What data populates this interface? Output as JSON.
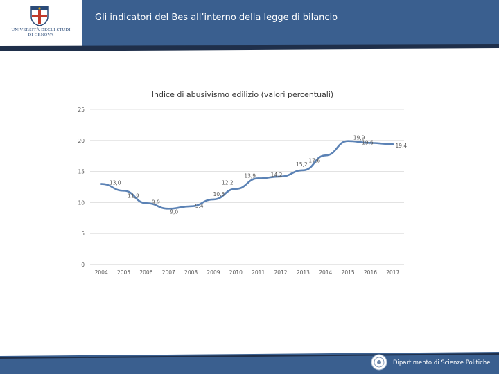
{
  "header": {
    "title": "Gli indicatori del Bes all’interno della legge di bilancio",
    "university_line1": "UNIVERSITÀ DEGLI STUDI",
    "university_line2": "DI GENOVA"
  },
  "footer": {
    "department": "Dipartimento di Scienze Politiche"
  },
  "colors": {
    "header_bg": "#3a5f8f",
    "stripe_dark": "#1f2f4a",
    "line": "#5b82b5",
    "grid": "#d9d9d9",
    "text": "#595959"
  },
  "chart_data": {
    "type": "line",
    "title": "Indice di abusivismo edilizio (valori percentuali)",
    "xlabel": "",
    "ylabel": "",
    "categories": [
      "2004",
      "2005",
      "2006",
      "2007",
      "2008",
      "2009",
      "2010",
      "2011",
      "2012",
      "2013",
      "2014",
      "2015",
      "2016",
      "2017"
    ],
    "values": [
      13.0,
      11.9,
      9.9,
      9.0,
      9.4,
      10.5,
      12.2,
      13.9,
      14.2,
      15.2,
      17.6,
      19.9,
      19.6,
      19.4
    ],
    "data_labels": [
      "13,0",
      "11,9",
      "9,9",
      "9,0",
      "9,4",
      "10,5",
      "12,2",
      "13,9",
      "14,2",
      "15,2",
      "17,6",
      "19,9",
      "19,6",
      "19,4"
    ],
    "yticks": [
      "0",
      "5",
      "10",
      "15",
      "20",
      "25"
    ],
    "ylim": [
      0,
      25
    ],
    "grid": true,
    "legend": "none"
  }
}
